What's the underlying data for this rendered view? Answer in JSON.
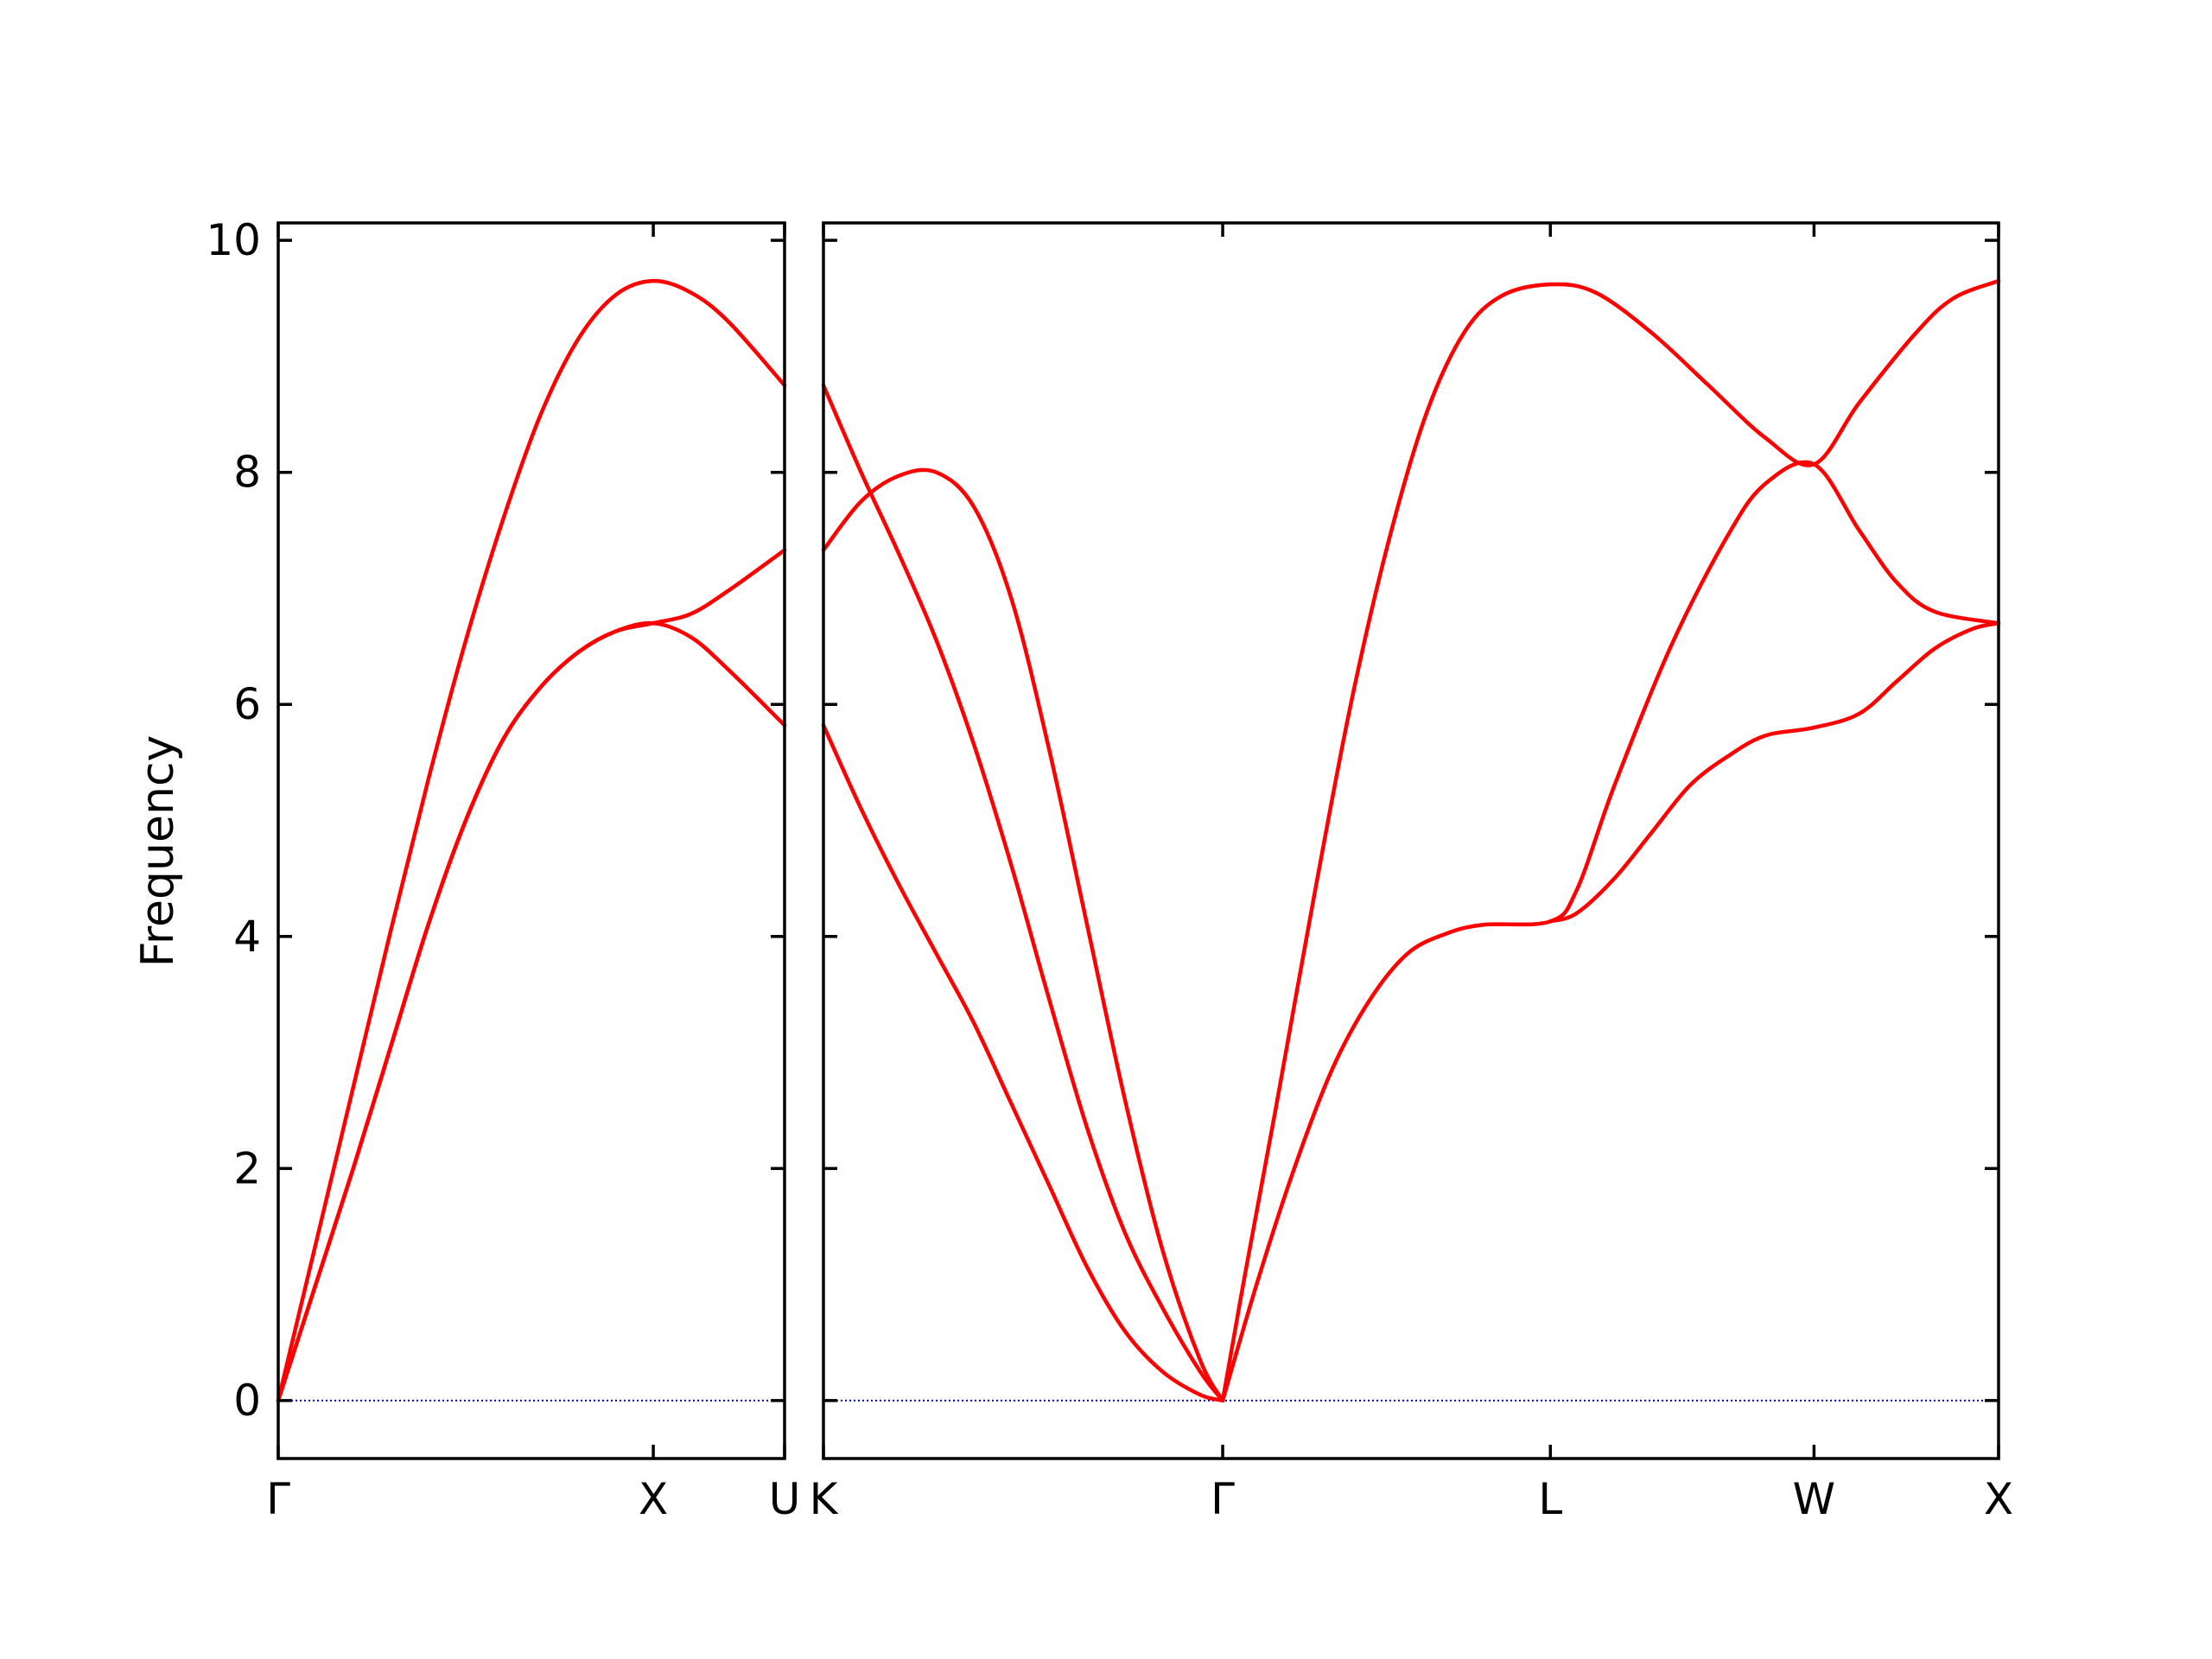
{
  "chart_data": {
    "type": "line",
    "ylabel": "Frequency",
    "ylim": [
      -0.5,
      10.15
    ],
    "yticks": [
      0,
      2,
      4,
      6,
      8,
      10
    ],
    "grid": false,
    "legend": "none",
    "colors": {
      "bands": "#ff0000",
      "zero_line": "#0000cc",
      "axes": "#000000"
    },
    "zero_line": 0,
    "panels": [
      {
        "name": "Γ-X-U",
        "xlim": [
          0,
          1.35
        ],
        "xticks": [
          {
            "pos": 0,
            "label": "Γ"
          },
          {
            "pos": 1.0,
            "label": "X"
          },
          {
            "pos": 1.35,
            "label": "U"
          }
        ],
        "series": [
          {
            "values": [
              [
                0,
                0
              ],
              [
                0.1,
                1.35
              ],
              [
                0.2,
                2.7
              ],
              [
                0.3,
                4.05
              ],
              [
                0.4,
                5.35
              ],
              [
                0.5,
                6.55
              ],
              [
                0.6,
                7.6
              ],
              [
                0.7,
                8.5
              ],
              [
                0.8,
                9.15
              ],
              [
                0.9,
                9.53
              ],
              [
                1.0,
                9.65
              ],
              [
                1.1,
                9.55
              ],
              [
                1.2,
                9.3
              ],
              [
                1.35,
                8.75
              ]
            ]
          },
          {
            "values": [
              [
                0,
                0
              ],
              [
                0.1,
                1.0
              ],
              [
                0.2,
                2.0
              ],
              [
                0.3,
                3.05
              ],
              [
                0.4,
                4.1
              ],
              [
                0.5,
                5.0
              ],
              [
                0.6,
                5.7
              ],
              [
                0.7,
                6.15
              ],
              [
                0.8,
                6.45
              ],
              [
                0.9,
                6.63
              ],
              [
                1.0,
                6.7
              ],
              [
                1.1,
                6.78
              ],
              [
                1.2,
                6.98
              ],
              [
                1.35,
                7.33
              ]
            ]
          },
          {
            "values": [
              [
                0,
                0
              ],
              [
                0.1,
                1.0
              ],
              [
                0.2,
                2.0
              ],
              [
                0.3,
                3.05
              ],
              [
                0.4,
                4.1
              ],
              [
                0.5,
                5.0
              ],
              [
                0.6,
                5.7
              ],
              [
                0.7,
                6.15
              ],
              [
                0.8,
                6.45
              ],
              [
                0.9,
                6.63
              ],
              [
                1.0,
                6.7
              ],
              [
                1.1,
                6.58
              ],
              [
                1.2,
                6.3
              ],
              [
                1.35,
                5.82
              ]
            ]
          }
        ]
      },
      {
        "name": "K-Γ-L-W-X",
        "xlim": [
          0,
          3.12
        ],
        "xticks": [
          {
            "pos": 0,
            "label": "K"
          },
          {
            "pos": 1.06,
            "label": "Γ"
          },
          {
            "pos": 1.93,
            "label": "L"
          },
          {
            "pos": 2.63,
            "label": "W"
          },
          {
            "pos": 3.12,
            "label": "X"
          }
        ],
        "series": [
          {
            "values": [
              [
                0,
                8.75
              ],
              [
                0.1,
                8.0
              ],
              [
                0.2,
                7.3
              ],
              [
                0.3,
                6.55
              ],
              [
                0.4,
                5.65
              ],
              [
                0.5,
                4.6
              ],
              [
                0.6,
                3.45
              ],
              [
                0.7,
                2.35
              ],
              [
                0.8,
                1.45
              ],
              [
                0.9,
                0.8
              ],
              [
                1.0,
                0.25
              ],
              [
                1.06,
                0
              ]
            ]
          },
          {
            "values": [
              [
                0,
                7.33
              ],
              [
                0.1,
                7.75
              ],
              [
                0.2,
                7.97
              ],
              [
                0.3,
                8.0
              ],
              [
                0.4,
                7.7
              ],
              [
                0.5,
                6.9
              ],
              [
                0.6,
                5.6
              ],
              [
                0.7,
                4.1
              ],
              [
                0.8,
                2.6
              ],
              [
                0.9,
                1.3
              ],
              [
                1.0,
                0.35
              ],
              [
                1.06,
                0
              ]
            ]
          },
          {
            "values": [
              [
                0,
                5.82
              ],
              [
                0.1,
                5.1
              ],
              [
                0.2,
                4.45
              ],
              [
                0.3,
                3.85
              ],
              [
                0.4,
                3.25
              ],
              [
                0.5,
                2.55
              ],
              [
                0.6,
                1.85
              ],
              [
                0.7,
                1.15
              ],
              [
                0.8,
                0.6
              ],
              [
                0.9,
                0.25
              ],
              [
                1.0,
                0.05
              ],
              [
                1.06,
                0
              ]
            ]
          },
          {
            "values": [
              [
                1.06,
                0
              ],
              [
                1.12,
                1.1
              ],
              [
                1.2,
                2.5
              ],
              [
                1.3,
                4.3
              ],
              [
                1.4,
                6.0
              ],
              [
                1.5,
                7.4
              ],
              [
                1.6,
                8.5
              ],
              [
                1.7,
                9.2
              ],
              [
                1.8,
                9.52
              ],
              [
                1.93,
                9.62
              ],
              [
                2.05,
                9.55
              ],
              [
                2.2,
                9.2
              ],
              [
                2.35,
                8.75
              ],
              [
                2.5,
                8.3
              ],
              [
                2.63,
                8.07
              ],
              [
                2.75,
                8.6
              ],
              [
                2.9,
                9.2
              ],
              [
                3.0,
                9.5
              ],
              [
                3.12,
                9.65
              ]
            ]
          },
          {
            "values": [
              [
                1.06,
                0
              ],
              [
                1.15,
                1.0
              ],
              [
                1.25,
                2.0
              ],
              [
                1.35,
                2.85
              ],
              [
                1.45,
                3.45
              ],
              [
                1.55,
                3.85
              ],
              [
                1.65,
                4.02
              ],
              [
                1.75,
                4.1
              ],
              [
                1.93,
                4.13
              ],
              [
                2.0,
                4.4
              ],
              [
                2.1,
                5.3
              ],
              [
                2.25,
                6.5
              ],
              [
                2.4,
                7.45
              ],
              [
                2.5,
                7.9
              ],
              [
                2.63,
                8.07
              ],
              [
                2.75,
                7.5
              ],
              [
                2.85,
                7.05
              ],
              [
                2.95,
                6.8
              ],
              [
                3.12,
                6.7
              ]
            ]
          },
          {
            "values": [
              [
                1.93,
                4.13
              ],
              [
                2.0,
                4.2
              ],
              [
                2.1,
                4.5
              ],
              [
                2.2,
                4.9
              ],
              [
                2.3,
                5.3
              ],
              [
                2.4,
                5.55
              ],
              [
                2.5,
                5.73
              ],
              [
                2.63,
                5.8
              ],
              [
                2.75,
                5.92
              ],
              [
                2.85,
                6.2
              ],
              [
                2.95,
                6.48
              ],
              [
                3.05,
                6.65
              ],
              [
                3.12,
                6.7
              ]
            ]
          }
        ]
      }
    ]
  }
}
